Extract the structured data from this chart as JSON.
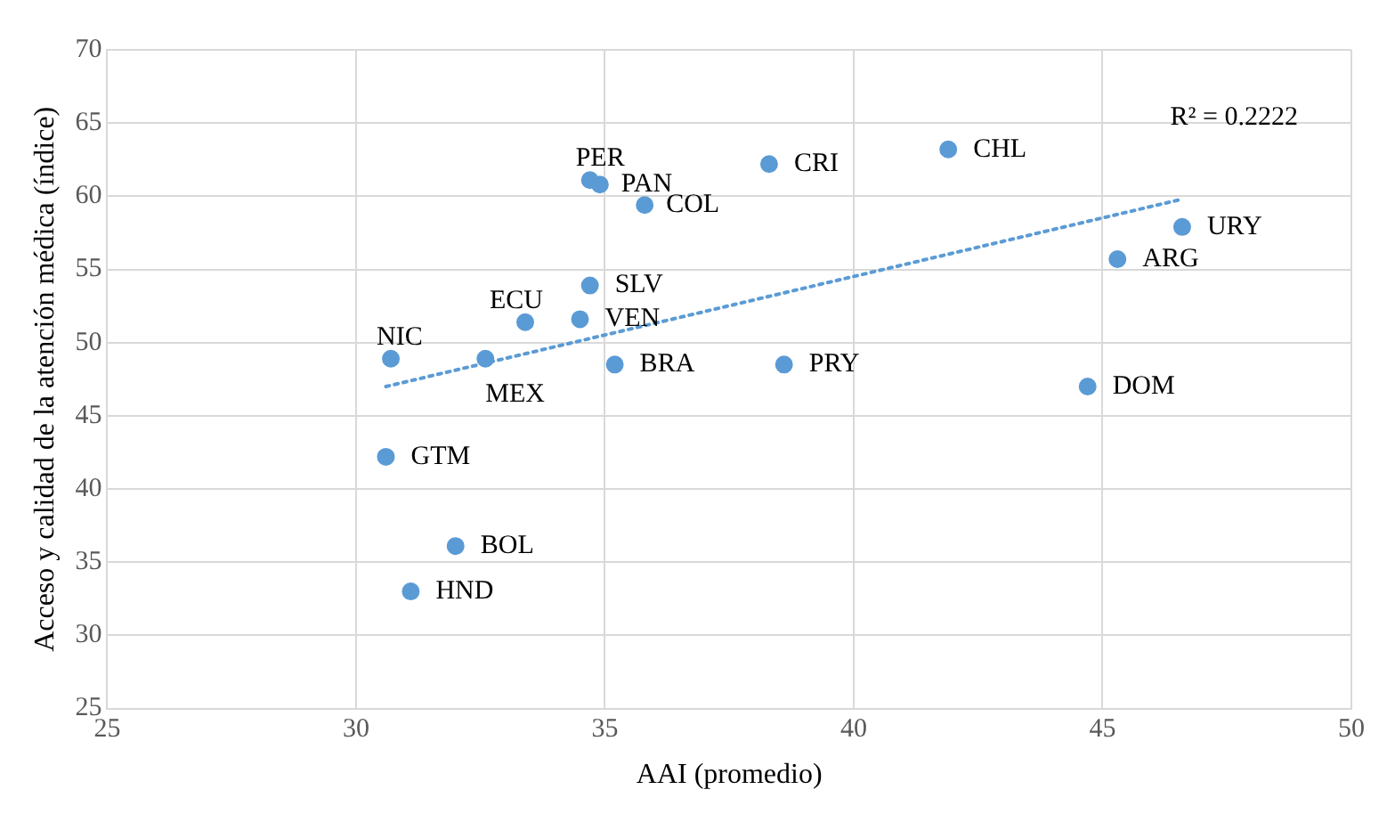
{
  "chart_data": {
    "type": "scatter",
    "xlabel": "AAI (promedio)",
    "ylabel": "Acceso y calidad de la atención médica (índice)",
    "x": [
      34.7,
      34.9,
      35.8,
      38.3,
      41.9,
      46.6,
      45.3,
      34.7,
      34.5,
      33.4,
      30.7,
      32.6,
      35.2,
      38.6,
      44.7,
      30.6,
      32.0,
      31.1
    ],
    "series": [
      {
        "color": "#5b9bd5",
        "marker": "circle",
        "values": [
          61.1,
          60.8,
          59.4,
          62.2,
          63.2,
          57.9,
          55.7,
          53.9,
          51.6,
          51.4,
          48.9,
          48.9,
          48.5,
          48.5,
          47.0,
          42.2,
          36.1,
          33.0
        ]
      },
      {
        "type": "line",
        "color": "#5b9bd5",
        "line_style": "dotted",
        "marker": "none",
        "x": [
          30.6,
          46.6
        ],
        "values": [
          47.0,
          59.8
        ]
      }
    ],
    "annotations": [
      {
        "text": "PER",
        "x": 34.7,
        "y": 61.1
      },
      {
        "text": "PAN",
        "x": 34.9,
        "y": 60.8
      },
      {
        "text": "COL",
        "x": 35.8,
        "y": 59.4
      },
      {
        "text": "CRI",
        "x": 38.3,
        "y": 62.2
      },
      {
        "text": "CHL",
        "x": 41.9,
        "y": 63.2
      },
      {
        "text": "URY",
        "x": 46.6,
        "y": 57.9
      },
      {
        "text": "ARG",
        "x": 45.3,
        "y": 55.7
      },
      {
        "text": "SLV",
        "x": 34.7,
        "y": 53.9
      },
      {
        "text": "VEN",
        "x": 34.5,
        "y": 51.6
      },
      {
        "text": "ECU",
        "x": 33.4,
        "y": 51.4
      },
      {
        "text": "NIC",
        "x": 30.7,
        "y": 48.9
      },
      {
        "text": "MEX",
        "x": 32.6,
        "y": 48.9
      },
      {
        "text": "BRA",
        "x": 35.2,
        "y": 48.5
      },
      {
        "text": "PRY",
        "x": 38.6,
        "y": 48.5
      },
      {
        "text": "DOM",
        "x": 44.7,
        "y": 47.0
      },
      {
        "text": "GTM",
        "x": 30.6,
        "y": 42.2
      },
      {
        "text": "BOL",
        "x": 32.0,
        "y": 36.1
      },
      {
        "text": "HND",
        "x": 31.1,
        "y": 33.0
      },
      "R² = 0.2222"
    ],
    "xlim": [
      25,
      50
    ],
    "xticks": [
      25,
      30,
      35,
      40,
      45,
      50
    ],
    "ylim": [
      25,
      70
    ],
    "yticks": [
      25,
      30,
      35,
      40,
      45,
      50,
      55,
      60,
      65,
      70
    ],
    "grid": true,
    "legend": false
  }
}
